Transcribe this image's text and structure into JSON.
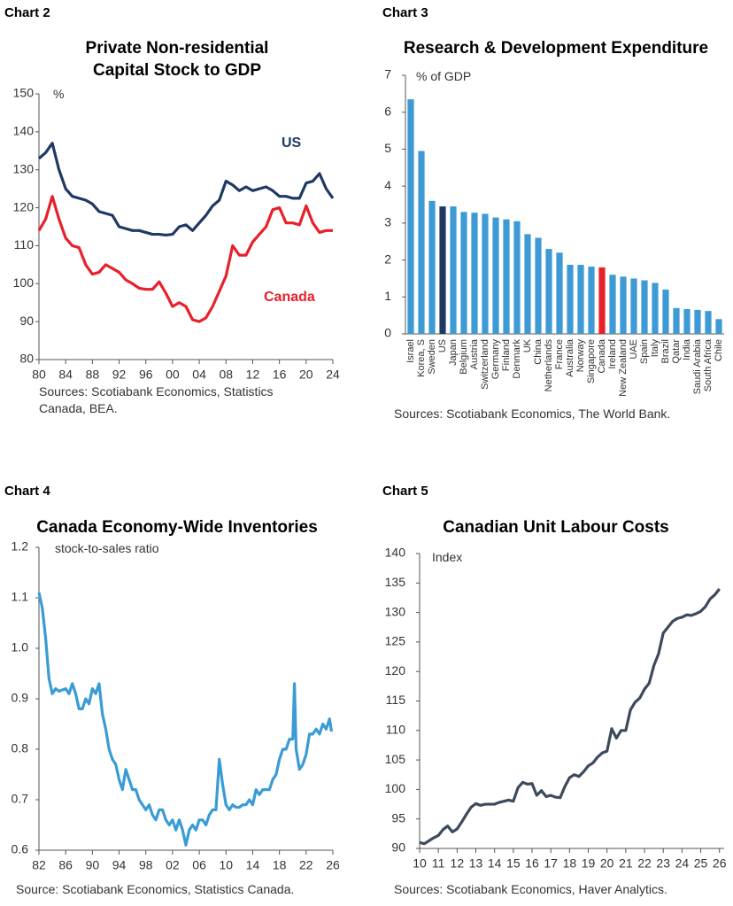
{
  "chart_data": [
    {
      "type": "line",
      "label": "Chart 2",
      "title": "Private Non-residential Capital Stock to GDP",
      "unit": "%",
      "source": "Sources: Scotiabank Economics, Statistics Canada, BEA.",
      "x": [
        1980,
        1981,
        1982,
        1983,
        1984,
        1985,
        1986,
        1987,
        1988,
        1989,
        1990,
        1991,
        1992,
        1993,
        1994,
        1995,
        1996,
        1997,
        1998,
        1999,
        2000,
        2001,
        2002,
        2003,
        2004,
        2005,
        2006,
        2007,
        2008,
        2009,
        2010,
        2011,
        2012,
        2013,
        2014,
        2015,
        2016,
        2017,
        2018,
        2019,
        2020,
        2021,
        2022,
        2023,
        2024
      ],
      "series": [
        {
          "name": "US",
          "color": "#1f3864",
          "values": [
            133,
            134.5,
            137,
            130,
            125,
            123,
            122.5,
            122,
            121,
            119,
            118.5,
            118,
            115,
            114.5,
            114,
            114,
            113.5,
            113,
            113,
            112.8,
            113,
            115,
            115.5,
            114,
            116,
            118,
            120.5,
            122,
            127,
            126,
            124.5,
            125.5,
            124.5,
            125,
            125.5,
            124.5,
            123,
            123,
            122.5,
            122.5,
            126.5,
            127,
            129,
            125,
            122.5
          ]
        },
        {
          "name": "Canada",
          "color": "#e8202a",
          "values": [
            114,
            117,
            123,
            117,
            112,
            110,
            109.5,
            105,
            102.5,
            103,
            105,
            104,
            103,
            101,
            100,
            98.8,
            98.5,
            98.5,
            100.5,
            97.5,
            94,
            95,
            94,
            90.5,
            90,
            91,
            94,
            98,
            102,
            110,
            107.5,
            107.5,
            111,
            113,
            115,
            119.5,
            120,
            116,
            116,
            115.5,
            120.5,
            116,
            113.5,
            114,
            114
          ]
        }
      ],
      "xlim": [
        1980,
        2024
      ],
      "xticks": [
        {
          "value": 1980,
          "label": "80"
        },
        {
          "value": 1984,
          "label": "84"
        },
        {
          "value": 1988,
          "label": "88"
        },
        {
          "value": 1992,
          "label": "92"
        },
        {
          "value": 1996,
          "label": "96"
        },
        {
          "value": 2000,
          "label": "00"
        },
        {
          "value": 2004,
          "label": "04"
        },
        {
          "value": 2008,
          "label": "08"
        },
        {
          "value": 2012,
          "label": "12"
        },
        {
          "value": 2016,
          "label": "16"
        },
        {
          "value": 2020,
          "label": "20"
        },
        {
          "value": 2024,
          "label": "24"
        }
      ],
      "ylim": [
        80,
        150
      ],
      "yticks": [
        80,
        90,
        100,
        110,
        120,
        130,
        140,
        150
      ]
    },
    {
      "type": "bar",
      "label": "Chart 3",
      "title": "Research & Development Expenditure",
      "unit": "% of GDP",
      "source": "Sources: Scotiabank Economics, The World Bank.",
      "categories": [
        "Israel",
        "Korea, S",
        "Sweden",
        "US",
        "Japan",
        "Belgium",
        "Austria",
        "Switzerland",
        "Germany",
        "Finland",
        "Denmark",
        "UK",
        "China",
        "Netherlands",
        "France",
        "Australia",
        "Norway",
        "Singapore",
        "Canada",
        "Ireland",
        "New Zealand",
        "UAE",
        "Spain",
        "Italy",
        "Brazil",
        "Qatar",
        "India",
        "Saudi Arabia",
        "South Africa",
        "Chile"
      ],
      "values": [
        6.35,
        4.95,
        3.6,
        3.45,
        3.45,
        3.3,
        3.28,
        3.25,
        3.15,
        3.1,
        3.05,
        2.7,
        2.6,
        2.3,
        2.2,
        1.87,
        1.87,
        1.82,
        1.8,
        1.6,
        1.55,
        1.5,
        1.45,
        1.38,
        1.2,
        0.7,
        0.67,
        0.65,
        0.62,
        0.4
      ],
      "colors": [
        "#3d9ad5",
        "#3d9ad5",
        "#3d9ad5",
        "#1f3864",
        "#3d9ad5",
        "#3d9ad5",
        "#3d9ad5",
        "#3d9ad5",
        "#3d9ad5",
        "#3d9ad5",
        "#3d9ad5",
        "#3d9ad5",
        "#3d9ad5",
        "#3d9ad5",
        "#3d9ad5",
        "#3d9ad5",
        "#3d9ad5",
        "#3d9ad5",
        "#e8202a",
        "#3d9ad5",
        "#3d9ad5",
        "#3d9ad5",
        "#3d9ad5",
        "#3d9ad5",
        "#3d9ad5",
        "#3d9ad5",
        "#3d9ad5",
        "#3d9ad5",
        "#3d9ad5",
        "#3d9ad5"
      ],
      "ylim": [
        0,
        7
      ],
      "yticks": [
        0,
        1,
        2,
        3,
        4,
        5,
        6,
        7
      ]
    },
    {
      "type": "line",
      "label": "Chart 4",
      "title": "Canada Economy-Wide Inventories",
      "unit": "stock-to-sales ratio",
      "source": "Source: Scotiabank Economics, Statistics Canada.",
      "color": "#3a9bd5",
      "x": [
        1982,
        1982.5,
        1983,
        1983.5,
        1984,
        1984.5,
        1985,
        1986,
        1986.5,
        1987,
        1987.5,
        1988,
        1988.5,
        1989,
        1989.5,
        1990,
        1990.5,
        1991,
        1991.5,
        1992,
        1992.5,
        1993,
        1993.5,
        1994,
        1994.5,
        1995,
        1995.5,
        1996,
        1996.5,
        1997,
        1997.5,
        1998,
        1998.5,
        1999,
        1999.5,
        2000,
        2000.5,
        2001,
        2001.5,
        2002,
        2002.5,
        2003,
        2003.5,
        2004,
        2004.5,
        2005,
        2005.5,
        2006,
        2006.5,
        2007,
        2007.5,
        2008,
        2008.5,
        2009,
        2009.5,
        2010,
        2010.5,
        2011,
        2011.5,
        2012,
        2012.5,
        2013,
        2013.5,
        2014,
        2014.5,
        2015,
        2015.5,
        2016,
        2016.5,
        2017,
        2017.5,
        2018,
        2018.5,
        2019,
        2019.5,
        2020,
        2020.25,
        2020.5,
        2021,
        2021.5,
        2022,
        2022.5,
        2023,
        2023.5,
        2024,
        2024.5,
        2025,
        2025.5,
        2025.8
      ],
      "values": [
        1.11,
        1.08,
        1.02,
        0.94,
        0.91,
        0.92,
        0.915,
        0.92,
        0.91,
        0.93,
        0.91,
        0.88,
        0.88,
        0.9,
        0.89,
        0.92,
        0.91,
        0.93,
        0.87,
        0.84,
        0.8,
        0.78,
        0.77,
        0.74,
        0.72,
        0.76,
        0.74,
        0.72,
        0.72,
        0.7,
        0.69,
        0.68,
        0.69,
        0.67,
        0.66,
        0.68,
        0.68,
        0.66,
        0.65,
        0.66,
        0.64,
        0.66,
        0.64,
        0.61,
        0.64,
        0.65,
        0.64,
        0.66,
        0.66,
        0.65,
        0.67,
        0.68,
        0.68,
        0.78,
        0.73,
        0.69,
        0.68,
        0.69,
        0.685,
        0.685,
        0.69,
        0.69,
        0.7,
        0.69,
        0.72,
        0.71,
        0.72,
        0.72,
        0.72,
        0.74,
        0.75,
        0.78,
        0.8,
        0.8,
        0.82,
        0.82,
        0.93,
        0.8,
        0.76,
        0.77,
        0.79,
        0.83,
        0.83,
        0.84,
        0.83,
        0.85,
        0.84,
        0.86,
        0.835
      ],
      "xlim": [
        1982,
        2026
      ],
      "xticks": [
        {
          "value": 1982,
          "label": "82"
        },
        {
          "value": 1986,
          "label": "86"
        },
        {
          "value": 1990,
          "label": "90"
        },
        {
          "value": 1994,
          "label": "94"
        },
        {
          "value": 1998,
          "label": "98"
        },
        {
          "value": 2002,
          "label": "02"
        },
        {
          "value": 2006,
          "label": "06"
        },
        {
          "value": 2010,
          "label": "10"
        },
        {
          "value": 2014,
          "label": "14"
        },
        {
          "value": 2018,
          "label": "18"
        },
        {
          "value": 2022,
          "label": "22"
        },
        {
          "value": 2026,
          "label": "26"
        }
      ],
      "ylim": [
        0.6,
        1.2
      ],
      "yticks": [
        0.6,
        0.7,
        0.8,
        0.9,
        {
          "value": 1,
          "label": "1.0"
        },
        1.1,
        1.2
      ]
    },
    {
      "type": "line",
      "label": "Chart 5",
      "title": "Canadian Unit Labour Costs",
      "unit": "Index",
      "source": "Sources: Scotiabank Economics, Haver Analytics.",
      "color": "#3d4a5c",
      "x": [
        2010,
        2010.25,
        2010.5,
        2010.75,
        2011,
        2011.25,
        2011.5,
        2011.75,
        2012,
        2012.25,
        2012.5,
        2012.75,
        2013,
        2013.25,
        2013.5,
        2013.75,
        2014,
        2014.25,
        2014.5,
        2014.75,
        2015,
        2015.25,
        2015.5,
        2015.75,
        2016,
        2016.25,
        2016.5,
        2016.75,
        2017,
        2017.25,
        2017.5,
        2017.75,
        2018,
        2018.25,
        2018.5,
        2018.75,
        2019,
        2019.25,
        2019.5,
        2019.75,
        2020,
        2020.25,
        2020.5,
        2020.75,
        2021,
        2021.25,
        2021.5,
        2021.75,
        2022,
        2022.25,
        2022.5,
        2022.75,
        2023,
        2023.25,
        2023.5,
        2023.75,
        2024,
        2024.25,
        2024.5,
        2024.75,
        2025,
        2025.25,
        2025.5,
        2025.75,
        2026
      ],
      "values": [
        91,
        90.8,
        91.3,
        91.8,
        92.2,
        93.2,
        93.8,
        92.8,
        93.3,
        94.5,
        95.8,
        97,
        97.6,
        97.3,
        97.5,
        97.5,
        97.5,
        97.8,
        98,
        98.2,
        98,
        100.3,
        101.2,
        100.9,
        101,
        99,
        99.8,
        98.8,
        99,
        98.7,
        98.6,
        100.5,
        102,
        102.5,
        102.2,
        103,
        104,
        104.5,
        105.5,
        106.2,
        106.5,
        110.3,
        108.7,
        110,
        110,
        113.5,
        114.8,
        115.5,
        117,
        118,
        121,
        123,
        126.5,
        127.5,
        128.5,
        129,
        129.2,
        129.6,
        129.5,
        129.8,
        130.2,
        131,
        132.3,
        133,
        134
      ],
      "xlim": [
        2010,
        2026.25
      ],
      "xticks": [
        {
          "value": 2010,
          "label": "10"
        },
        {
          "value": 2011,
          "label": "11"
        },
        {
          "value": 2012,
          "label": "12"
        },
        {
          "value": 2013,
          "label": "13"
        },
        {
          "value": 2014,
          "label": "14"
        },
        {
          "value": 2015,
          "label": "15"
        },
        {
          "value": 2016,
          "label": "16"
        },
        {
          "value": 2017,
          "label": "17"
        },
        {
          "value": 2018,
          "label": "18"
        },
        {
          "value": 2019,
          "label": "19"
        },
        {
          "value": 2020,
          "label": "20"
        },
        {
          "value": 2021,
          "label": "21"
        },
        {
          "value": 2022,
          "label": "22"
        },
        {
          "value": 2023,
          "label": "23"
        },
        {
          "value": 2024,
          "label": "24"
        },
        {
          "value": 2025,
          "label": "25"
        },
        {
          "value": 2026,
          "label": "26"
        }
      ],
      "ylim": [
        90,
        140
      ],
      "yticks": [
        90,
        95,
        100,
        105,
        110,
        115,
        120,
        125,
        130,
        135,
        140
      ]
    }
  ]
}
